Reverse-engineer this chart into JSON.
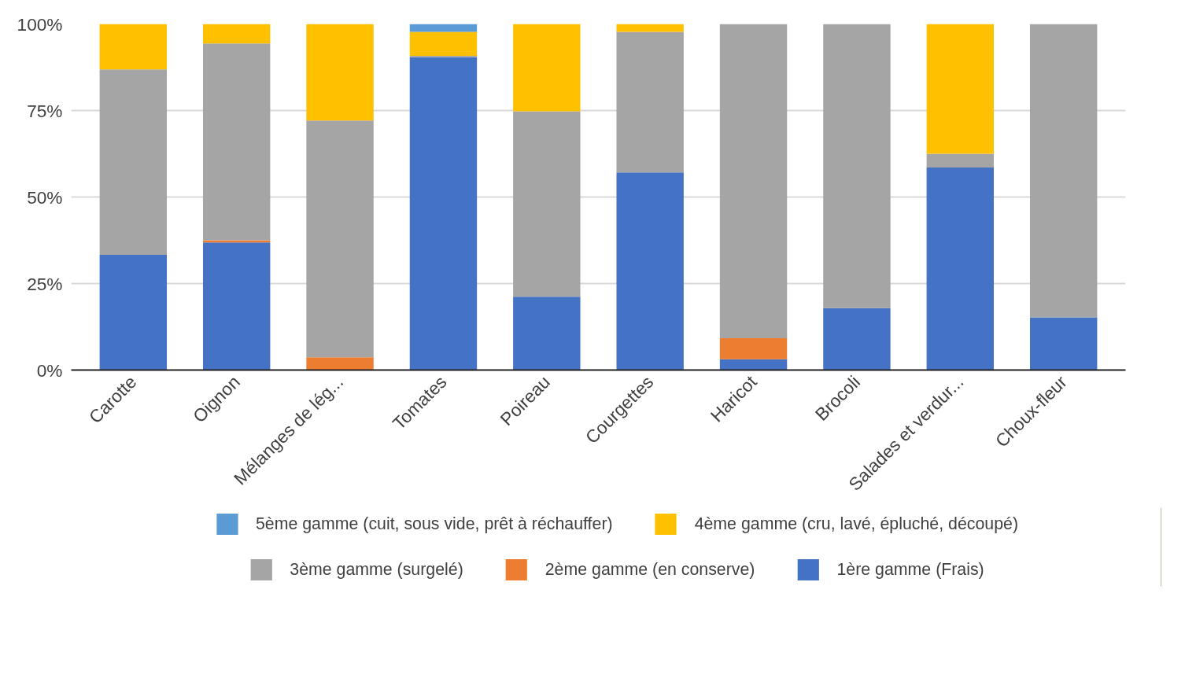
{
  "chart_data": {
    "type": "bar",
    "stacked": true,
    "categories": [
      "Carotte",
      "Oignon",
      "Mélanges de lég...",
      "Tomates",
      "Poireau",
      "Courgettes",
      "Haricot",
      "Brocoli",
      "Salades et verdur...",
      "Choux-fleur"
    ],
    "series": [
      {
        "name": "1ère gamme (Frais)",
        "color": "#4472c4",
        "values": [
          33.3,
          36.9,
          0,
          90.4,
          21.2,
          57.1,
          3.1,
          17.9,
          58.5,
          15.2
        ]
      },
      {
        "name": "2ème gamme (en conserve)",
        "color": "#ed7d31",
        "values": [
          0,
          0.6,
          3.7,
          0,
          0,
          0,
          6.1,
          0,
          0,
          0
        ]
      },
      {
        "name": "3ème gamme (surgelé)",
        "color": "#a5a5a5",
        "values": [
          53.6,
          56.9,
          68.4,
          0.4,
          53.6,
          40.6,
          90.8,
          82.1,
          4.0,
          84.8
        ]
      },
      {
        "name": "4ème gamme (cru, lavé, épluché, découpé)",
        "color": "#ffc000",
        "values": [
          13.1,
          5.6,
          27.9,
          6.9,
          25.2,
          2.3,
          0,
          0,
          37.5,
          0
        ]
      },
      {
        "name": "5ème gamme (cuit, sous vide, prêt à réchauffer)",
        "color": "#5b9bd5",
        "values": [
          0,
          0,
          0,
          2.3,
          0,
          0,
          0,
          0,
          0,
          0
        ]
      }
    ],
    "ylim": [
      0,
      100
    ],
    "yticks": [
      {
        "value": 0,
        "label": "0%"
      },
      {
        "value": 25,
        "label": "25%"
      },
      {
        "value": 50,
        "label": "50%"
      },
      {
        "value": 75,
        "label": "75%"
      },
      {
        "value": 100,
        "label": "100%"
      }
    ],
    "grid": "y",
    "legend": "bottom"
  }
}
